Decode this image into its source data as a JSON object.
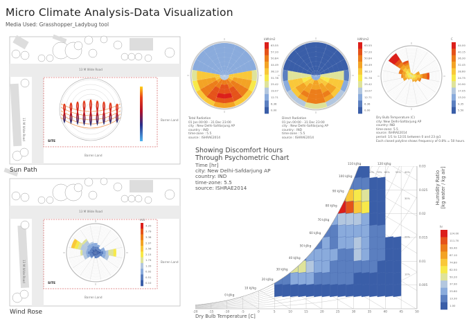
{
  "header": {
    "title": "Micro Climate Analysis-Data Visualization",
    "subtitle": "Media Used: Grasshopper_Ladybug tool"
  },
  "site_plan": {
    "road_horizontal": "13 M Wide Road",
    "road_vertical": "13 M Wide Road",
    "barren_right": "Barren Land",
    "barren_bottom": "Barren Land",
    "site": "SITE",
    "site_border_color": "#d66a6a"
  },
  "sun_path": {
    "label": "Sun Path",
    "legend_colors": [
      "#4fb3f0",
      "#2a2f8a",
      "#b0102a",
      "#e8401a",
      "#ffd21a"
    ]
  },
  "wind_rose": {
    "label": "Wind Rose",
    "unit": "m/s",
    "legend_values": [
      "4.20",
      "3.79",
      "3.38",
      "2.97",
      "2.56",
      "2.15",
      "1.74",
      "1.33",
      "0.92",
      "0.51",
      "0.10"
    ],
    "direction_frequencies": [
      0.35,
      0.3,
      0.2,
      0.35,
      0.75,
      0.5,
      0.2,
      0.2,
      0.2,
      0.15,
      0.25,
      0.45,
      0.55,
      0.9,
      0.6,
      0.4
    ]
  },
  "color_scale": [
    "#3a5ea8",
    "#5b7fc0",
    "#8aabdc",
    "#b3c7df",
    "#dfe39a",
    "#f7e94a",
    "#f9c83a",
    "#f3a325",
    "#ec7d1a",
    "#e5531a",
    "#dc1f1a"
  ],
  "total_radiation": {
    "unit": "kWh/m2",
    "legend_values": [
      "63.55",
      "57.20",
      "50.84",
      "44.49",
      "38.13",
      "31.78",
      "25.42",
      "19.07",
      "12.71",
      "6.36",
      "0.00"
    ],
    "info": [
      "Total Radiation",
      "01 Jan 00:00 - 31 Dec 23:00",
      "city : New Delhi-Safdarjung AP",
      "country : IND",
      "time-zone : 5.5",
      "source : ISHRAE2014"
    ]
  },
  "direct_radiation": {
    "unit": "kWh/m2",
    "legend_values": [
      "63.55",
      "57.20",
      "50.84",
      "44.49",
      "38.13",
      "31.78",
      "25.42",
      "19.07",
      "12.71",
      "6.36",
      "0.00"
    ],
    "info": [
      "Direct Radiation",
      "01 Jan 00:00 - 31 Dec 23:00",
      "city : New Delhi-Safdarjung AP",
      "country : IND",
      "time-zone : 5.5",
      "source : ISHRAE2014"
    ]
  },
  "temperature_rose": {
    "unit": "C",
    "legend_values": [
      "44.00",
      "40.15",
      "36.30",
      "32.45",
      "28.60",
      "24.75",
      "20.90",
      "17.05",
      "13.20",
      "9.35",
      "5.50"
    ],
    "direction_frequencies": [
      0.12,
      0.1,
      0.1,
      0.3,
      0.62,
      0.35,
      0.25,
      0.2,
      0.1,
      0.1,
      0.15,
      0.3,
      0.35,
      0.45,
      0.95,
      0.55
    ],
    "info": [
      "Dry Bulb Temperature (C)",
      "city: New Delhi-Safdarjung AP",
      "country: IND",
      "time-zone: 5.5",
      "source: ISHRAE2014",
      "period: 1/1 to 12/31 between 0 and 23 @1",
      "Each closed polyline shows frequency of 0.8% = 50 hours."
    ]
  },
  "psychrometric": {
    "title": [
      "Showing Discomfort Hours",
      "Through Psychometric Chart"
    ],
    "info": [
      "Time [hr]",
      "city: New Delhi-Safdarjung AP",
      "country: IND",
      "time-zone: 5.5",
      "source: ISHRAE2014"
    ],
    "legend_unit": "hr",
    "legend_values": [
      "124.00",
      "111.70",
      "99.40",
      "87.10",
      "74.80",
      "62.50",
      "50.20",
      "37.90",
      "25.60",
      "13.30",
      "1.00"
    ],
    "rh_labels": [
      "90%",
      "80%",
      "70%",
      "60%",
      "50%",
      "40%",
      "30%",
      "20%",
      "10%"
    ]
  },
  "chart_data": {
    "type": "heatmap",
    "title": "Showing Discomfort Hours Through Psychometric Chart",
    "xlabel": "Dry Bulb Temperature [C]",
    "ylabel": "Humidity Ratio [kg water / kg air]",
    "xlim": [
      -20,
      50
    ],
    "ylim": [
      0,
      0.03
    ],
    "x_ticks": [
      "-20",
      "-15",
      "-10",
      "-5",
      "0",
      "5",
      "10",
      "15",
      "20",
      "25",
      "30",
      "35",
      "40",
      "45",
      "50"
    ],
    "y_ticks": [
      "0.005",
      "0.01",
      "0.015",
      "0.02",
      "0.025",
      "0.03"
    ],
    "enthalpy_labels": [
      "0 kJ/kg",
      "10 kJ/kg",
      "20 kJ/kg",
      "30 kJ/kg",
      "40 kJ/kg",
      "50 kJ/kg",
      "60 kJ/kg",
      "70 kJ/kg",
      "80 kJ/kg",
      "90 kJ/kg",
      "100 kJ/kg",
      "110 kJ/kg",
      "120 kJ/kg"
    ],
    "temperature_bins": [
      5,
      10,
      15,
      20,
      25,
      30,
      35,
      40,
      45
    ],
    "humidity_bins": [
      0.0025,
      0.005,
      0.0075,
      0.01,
      0.0125,
      0.015,
      0.0175,
      0.02,
      0.0225,
      0.025,
      0.0275,
      0.03
    ],
    "hours": [
      [
        5,
        8,
        10,
        12,
        10,
        8,
        6,
        4
      ],
      [
        20,
        30,
        25,
        18,
        15,
        12,
        10,
        6
      ],
      [
        30,
        55,
        35,
        25,
        20,
        18,
        14,
        8
      ],
      [
        0,
        20,
        30,
        28,
        22,
        40,
        15,
        8
      ],
      [
        0,
        0,
        20,
        25,
        30,
        35,
        18,
        6
      ],
      [
        0,
        0,
        0,
        22,
        28,
        30,
        16,
        0
      ],
      [
        0,
        0,
        0,
        30,
        45,
        40,
        12,
        0
      ],
      [
        0,
        0,
        0,
        25,
        124,
        70,
        10,
        0
      ],
      [
        0,
        0,
        0,
        0,
        90,
        65,
        8,
        0
      ],
      [
        0,
        0,
        0,
        0,
        20,
        15,
        5,
        0
      ],
      [
        0,
        0,
        0,
        0,
        5,
        8,
        0,
        0
      ]
    ],
    "color_range": [
      1,
      124
    ],
    "grid": true,
    "legend": "right"
  }
}
